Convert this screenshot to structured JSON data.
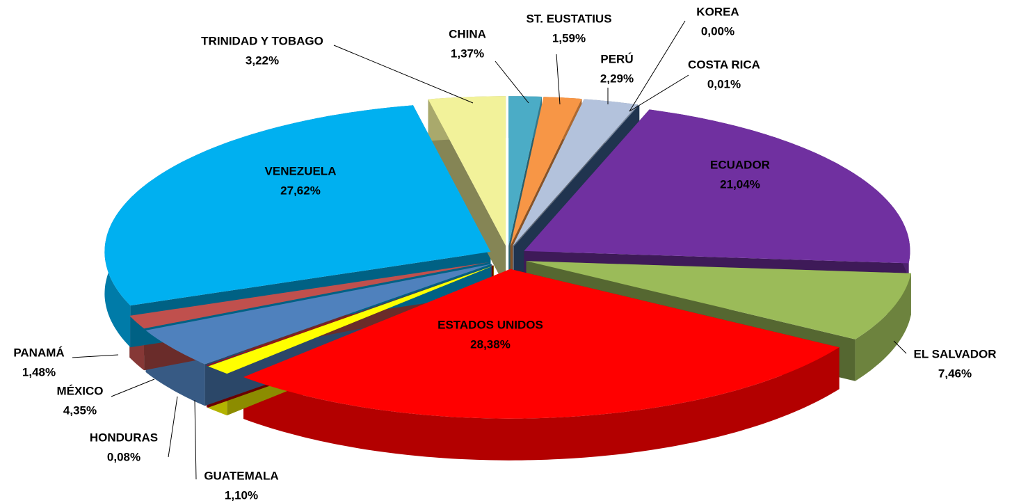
{
  "chart_data": {
    "type": "pie",
    "categories": [
      "CHINA",
      "ST. EUSTATIUS",
      "PERÚ",
      "KOREA",
      "COSTA RICA",
      "ECUADOR",
      "EL SALVADOR",
      "ESTADOS UNIDOS",
      "GUATEMALA",
      "HONDURAS",
      "MÉXICO",
      "PANAMÁ",
      "VENEZUELA",
      "TRINIDAD Y TOBAGO"
    ],
    "values": [
      1.37,
      1.59,
      2.29,
      0.0,
      0.01,
      21.04,
      7.46,
      28.38,
      1.1,
      0.08,
      4.35,
      1.48,
      27.62,
      3.22
    ],
    "value_labels": [
      "1,37%",
      "1,59%",
      "2,29%",
      "0,00%",
      "0,01%",
      "21,04%",
      "7,46%",
      "28,38%",
      "1,10%",
      "0,08%",
      "4,35%",
      "1,48%",
      "27,62%",
      "3,22%"
    ],
    "colors": [
      "#4bacc6",
      "#f79646",
      "#b3c2dc",
      "#4f81bd",
      "#3b5f8f",
      "#7030a0",
      "#9bbb59",
      "#ff0000",
      "#ffff00",
      "#c00000",
      "#4f81bd",
      "#c0504d",
      "#00b0f0",
      "#f2f29a"
    ]
  }
}
